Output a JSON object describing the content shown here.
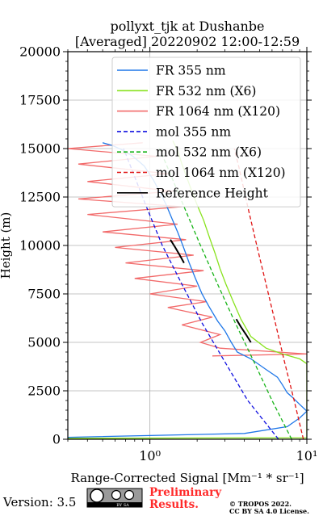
{
  "chart_data": {
    "type": "line",
    "title": "pollyxt_tjk at Dushanbe",
    "subtitle": "[Averaged] 20220902 12:00-12:59",
    "xlabel": "Range-Corrected Signal [Mm⁻¹ * sr⁻¹]",
    "ylabel": "Height (m)",
    "xscale": "log",
    "xlim": [
      0.3,
      10
    ],
    "ylim": [
      0,
      20000
    ],
    "x_tick_labels": [
      "10⁰",
      "10¹"
    ],
    "y_ticks": [
      0,
      2500,
      5000,
      7500,
      10000,
      12500,
      15000,
      17500,
      20000
    ],
    "y_tick_labels": [
      "0",
      "2500",
      "5000",
      "7500",
      "10000",
      "12500",
      "15000",
      "17500",
      "20000"
    ],
    "grid": true,
    "legend_position": "top-right",
    "series": [
      {
        "name": "FR 355 nm",
        "color": "#1f77e8",
        "style": "solid",
        "points": [
          [
            0.3,
            100
          ],
          [
            4.0,
            300
          ],
          [
            7.5,
            650
          ],
          [
            9.0,
            1100
          ],
          [
            10.0,
            1450
          ],
          [
            9.0,
            1800
          ],
          [
            8.0,
            2200
          ],
          [
            7.5,
            2400
          ],
          [
            7.0,
            2800
          ],
          [
            6.5,
            3200
          ],
          [
            5.5,
            3600
          ],
          [
            4.4,
            4150
          ],
          [
            3.6,
            4500
          ],
          [
            3.3,
            5000
          ],
          [
            3.0,
            5600
          ],
          [
            2.7,
            6100
          ],
          [
            2.4,
            6800
          ],
          [
            2.15,
            7500
          ],
          [
            1.95,
            8300
          ],
          [
            1.78,
            9100
          ],
          [
            1.62,
            10000
          ],
          [
            1.5,
            10700
          ],
          [
            1.38,
            11400
          ],
          [
            1.27,
            12100
          ],
          [
            1.15,
            12800
          ],
          [
            1.05,
            13400
          ],
          [
            0.92,
            14100
          ],
          [
            0.78,
            14600
          ],
          [
            0.68,
            14900
          ],
          [
            0.58,
            15150
          ],
          [
            0.5,
            15300
          ]
        ]
      },
      {
        "name": "FR 532 nm (X6)",
        "color": "#88e21e",
        "style": "solid",
        "points": [
          [
            0.3,
            50
          ],
          [
            10.0,
            80
          ],
          [
            10.0,
            3900
          ],
          [
            9.0,
            4150
          ],
          [
            7.0,
            4400
          ],
          [
            5.5,
            4700
          ],
          [
            4.4,
            5300
          ],
          [
            3.8,
            6200
          ],
          [
            3.4,
            7100
          ],
          [
            3.05,
            8000
          ],
          [
            2.8,
            8800
          ],
          [
            2.6,
            9600
          ],
          [
            2.4,
            10400
          ],
          [
            2.2,
            11300
          ],
          [
            2.0,
            12100
          ],
          [
            1.85,
            12800
          ],
          [
            1.72,
            13500
          ],
          [
            1.6,
            14200
          ],
          [
            1.5,
            14900
          ],
          [
            1.4,
            15400
          ]
        ]
      },
      {
        "name": "FR 1064 nm (X120)",
        "color": "#f26a6a",
        "style": "solid",
        "points": [
          [
            2.5,
            4300
          ],
          [
            10.0,
            4400
          ],
          [
            2.8,
            4700
          ],
          [
            2.1,
            5000
          ],
          [
            2.8,
            5400
          ],
          [
            1.6,
            5900
          ],
          [
            2.5,
            6300
          ],
          [
            1.3,
            6800
          ],
          [
            2.3,
            7100
          ],
          [
            1.0,
            7500
          ],
          [
            2.0,
            7900
          ],
          [
            0.8,
            8300
          ],
          [
            2.2,
            8700
          ],
          [
            0.7,
            9100
          ],
          [
            1.9,
            9500
          ],
          [
            0.6,
            9900
          ],
          [
            1.7,
            10300
          ],
          [
            0.5,
            10700
          ],
          [
            1.5,
            11100
          ],
          [
            0.4,
            11600
          ],
          [
            1.6,
            12000
          ],
          [
            0.35,
            12400
          ],
          [
            1.4,
            12800
          ],
          [
            0.4,
            13300
          ],
          [
            1.3,
            13700
          ],
          [
            0.35,
            14200
          ],
          [
            1.1,
            14600
          ],
          [
            0.3,
            15000
          ],
          [
            0.9,
            15300
          ]
        ]
      },
      {
        "name": "mol 355 nm",
        "color": "#1010e0",
        "style": "dashed",
        "points": [
          [
            6.6,
            0
          ],
          [
            4.2,
            2000
          ],
          [
            3.0,
            4000
          ],
          [
            2.15,
            6000
          ],
          [
            1.6,
            8000
          ],
          [
            1.2,
            10000
          ],
          [
            0.95,
            12000
          ],
          [
            0.76,
            14000
          ],
          [
            0.68,
            15000
          ]
        ]
      },
      {
        "name": "mol 532 nm (X6)",
        "color": "#18b418",
        "style": "dashed",
        "points": [
          [
            8.0,
            0
          ],
          [
            6.0,
            2000
          ],
          [
            4.6,
            4000
          ],
          [
            3.5,
            6000
          ],
          [
            2.7,
            8000
          ],
          [
            2.1,
            10000
          ],
          [
            1.65,
            12000
          ],
          [
            1.3,
            14000
          ],
          [
            1.15,
            15000
          ]
        ]
      },
      {
        "name": "mol 1064 nm (X120)",
        "color": "#e01414",
        "style": "dashed",
        "points": [
          [
            9.5,
            0
          ],
          [
            8.3,
            2000
          ],
          [
            7.2,
            4000
          ],
          [
            6.3,
            6000
          ],
          [
            5.5,
            8000
          ],
          [
            4.8,
            10000
          ],
          [
            4.2,
            12000
          ],
          [
            3.7,
            14000
          ],
          [
            3.45,
            15000
          ]
        ]
      },
      {
        "name": "Reference Height",
        "color": "#000000",
        "style": "solid",
        "points": [
          [
            1.35,
            10300
          ],
          [
            1.45,
            9900
          ],
          [
            1.55,
            9500
          ],
          [
            1.65,
            9100
          ]
        ]
      }
    ],
    "reference_segments": [
      [
        [
          3.55,
          6200
        ],
        [
          3.8,
          5800
        ],
        [
          4.1,
          5400
        ],
        [
          4.4,
          5000
        ]
      ]
    ]
  },
  "footer": {
    "version": "Version: 3.5",
    "license_badge": "BY SA",
    "preliminary": "Preliminary",
    "results": "Results.",
    "copyright": "© TROPOS 2022.",
    "license": "CC BY SA 4.0 License."
  }
}
